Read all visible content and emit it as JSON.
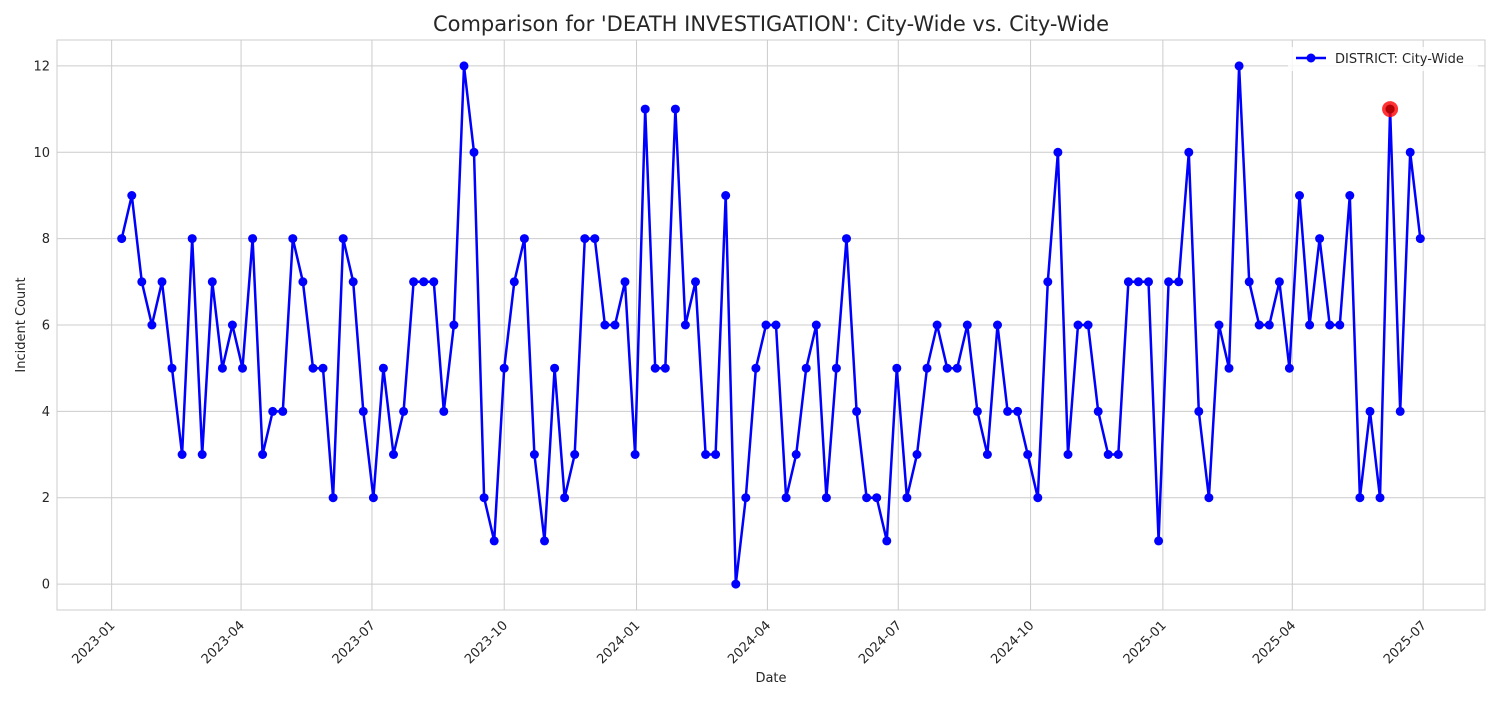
{
  "chart_data": {
    "type": "line",
    "title": "Comparison for 'DEATH INVESTIGATION': City-Wide vs. City-Wide",
    "xlabel": "Date",
    "ylabel": "Incident Count",
    "ylim": [
      -0.6,
      12.6
    ],
    "y_ticks": [
      0,
      2,
      4,
      6,
      8,
      10,
      12
    ],
    "x_ticks": [
      "2023-01",
      "2023-04",
      "2023-07",
      "2023-10",
      "2024-01",
      "2024-04",
      "2024-07",
      "2024-10",
      "2025-01",
      "2025-04",
      "2025-07"
    ],
    "grid": true,
    "legend_position": "top-right",
    "series": [
      {
        "name": "DISTRICT: City-Wide",
        "color": "#0000ff",
        "marker": "circle",
        "x": [
          "2023-01-08",
          "2023-01-15",
          "2023-01-22",
          "2023-01-29",
          "2023-02-05",
          "2023-02-12",
          "2023-02-19",
          "2023-02-26",
          "2023-03-05",
          "2023-03-12",
          "2023-03-19",
          "2023-03-26",
          "2023-04-02",
          "2023-04-09",
          "2023-04-16",
          "2023-04-23",
          "2023-04-30",
          "2023-05-07",
          "2023-05-14",
          "2023-05-21",
          "2023-05-28",
          "2023-06-04",
          "2023-06-11",
          "2023-06-18",
          "2023-06-25",
          "2023-07-02",
          "2023-07-09",
          "2023-07-16",
          "2023-07-23",
          "2023-07-30",
          "2023-08-06",
          "2023-08-13",
          "2023-08-20",
          "2023-08-27",
          "2023-09-03",
          "2023-09-10",
          "2023-09-17",
          "2023-09-24",
          "2023-10-01",
          "2023-10-08",
          "2023-10-15",
          "2023-10-22",
          "2023-10-29",
          "2023-11-05",
          "2023-11-12",
          "2023-11-19",
          "2023-11-26",
          "2023-12-03",
          "2023-12-10",
          "2023-12-17",
          "2023-12-24",
          "2023-12-31",
          "2024-01-07",
          "2024-01-14",
          "2024-01-21",
          "2024-01-28",
          "2024-02-04",
          "2024-02-11",
          "2024-02-18",
          "2024-02-25",
          "2024-03-03",
          "2024-03-10",
          "2024-03-17",
          "2024-03-24",
          "2024-03-31",
          "2024-04-07",
          "2024-04-14",
          "2024-04-21",
          "2024-04-28",
          "2024-05-05",
          "2024-05-12",
          "2024-05-19",
          "2024-05-26",
          "2024-06-02",
          "2024-06-09",
          "2024-06-16",
          "2024-06-23",
          "2024-06-30",
          "2024-07-07",
          "2024-07-14",
          "2024-07-21",
          "2024-07-28",
          "2024-08-04",
          "2024-08-11",
          "2024-08-18",
          "2024-08-25",
          "2024-09-01",
          "2024-09-08",
          "2024-09-15",
          "2024-09-22",
          "2024-09-29",
          "2024-10-06",
          "2024-10-13",
          "2024-10-20",
          "2024-10-27",
          "2024-11-03",
          "2024-11-10",
          "2024-11-17",
          "2024-11-24",
          "2024-12-01",
          "2024-12-08",
          "2024-12-15",
          "2024-12-22",
          "2024-12-29",
          "2025-01-05",
          "2025-01-12",
          "2025-01-19",
          "2025-01-26",
          "2025-02-02",
          "2025-02-09",
          "2025-02-16",
          "2025-02-23",
          "2025-03-02",
          "2025-03-09",
          "2025-03-16",
          "2025-03-23",
          "2025-03-30",
          "2025-04-06",
          "2025-04-13",
          "2025-04-20",
          "2025-04-27",
          "2025-05-04",
          "2025-05-11",
          "2025-05-18",
          "2025-05-25",
          "2025-06-01",
          "2025-06-08",
          "2025-06-15",
          "2025-06-22",
          "2025-06-29"
        ],
        "values": [
          8,
          9,
          7,
          6,
          7,
          5,
          3,
          8,
          3,
          7,
          5,
          6,
          5,
          8,
          3,
          4,
          4,
          8,
          7,
          5,
          5,
          2,
          8,
          7,
          4,
          2,
          5,
          3,
          4,
          7,
          7,
          7,
          4,
          6,
          12,
          10,
          2,
          1,
          5,
          7,
          8,
          3,
          1,
          5,
          2,
          3,
          8,
          8,
          6,
          6,
          7,
          3,
          11,
          5,
          5,
          11,
          6,
          7,
          3,
          3,
          9,
          0,
          2,
          5,
          6,
          6,
          2,
          3,
          5,
          6,
          2,
          5,
          8,
          4,
          2,
          2,
          1,
          5,
          2,
          3,
          5,
          6,
          5,
          5,
          6,
          4,
          3,
          6,
          4,
          4,
          3,
          2,
          7,
          10,
          3,
          6,
          6,
          4,
          3,
          3,
          7,
          7,
          7,
          1,
          7,
          7,
          10,
          4,
          2,
          6,
          5,
          12,
          7,
          6,
          6,
          7,
          5,
          9,
          6,
          8,
          6,
          6,
          9,
          2,
          4,
          2,
          11,
          4,
          10,
          8
        ]
      }
    ],
    "highlight": {
      "x": "2025-06-08",
      "value": 11,
      "color": "#ff0000"
    }
  }
}
